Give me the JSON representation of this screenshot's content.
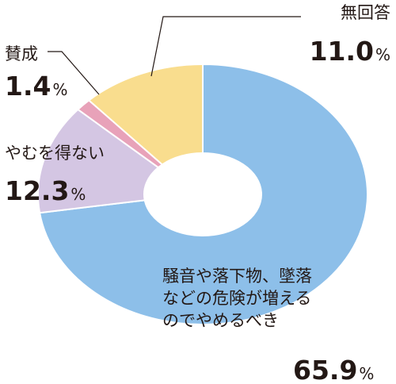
{
  "chart_data": {
    "type": "pie",
    "donut": true,
    "slices": [
      {
        "label": "騒音や落下物、墜落などの危険が増えるのでやめるべき",
        "label_lines": [
          "騒音や落下物、墜落",
          "などの危険が増える",
          "のでやめるべき"
        ],
        "value": 65.9,
        "value_text": "65.9",
        "unit": "%",
        "color": "#8dbfe9"
      },
      {
        "label": "やむを得ない",
        "label_lines": [
          "やむを得ない"
        ],
        "value": 12.3,
        "value_text": "12.3",
        "unit": "%",
        "color": "#d4c6e3"
      },
      {
        "label": "賛成",
        "label_lines": [
          "賛成"
        ],
        "value": 1.4,
        "value_text": "1.4",
        "unit": "%",
        "color": "#e8a2b9"
      },
      {
        "label": "無回答",
        "label_lines": [
          "無回答"
        ],
        "value": 11.0,
        "value_text": "11.0",
        "unit": "%",
        "color": "#f9dd8e"
      }
    ]
  }
}
